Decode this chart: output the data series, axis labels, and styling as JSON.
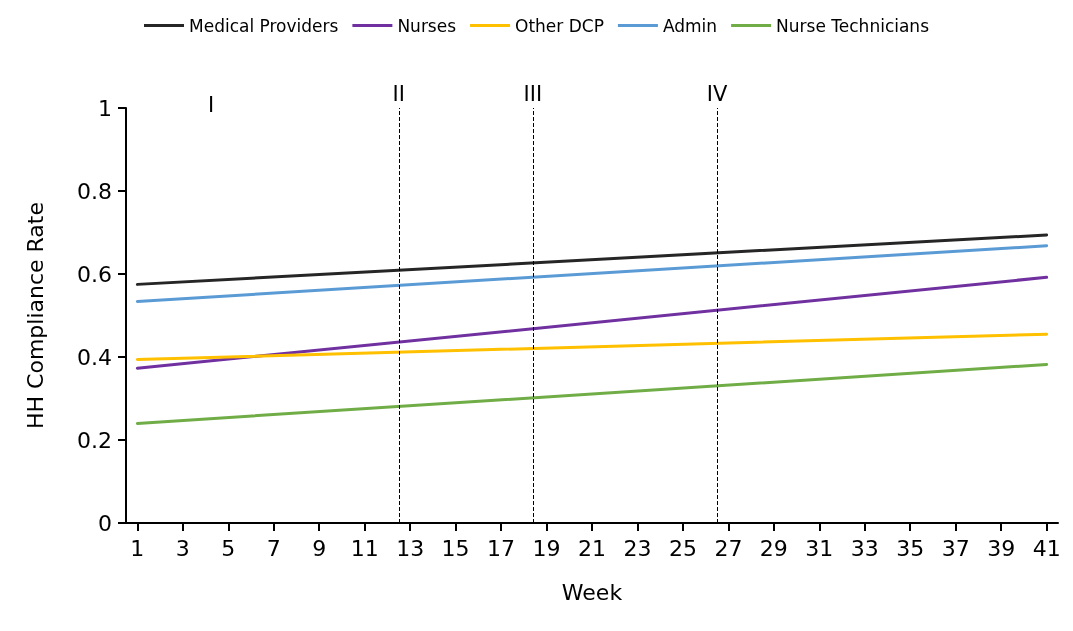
{
  "chart_data": {
    "type": "line",
    "xlabel": "Week",
    "ylabel": "HH Compliance Rate",
    "xlim": [
      0.5,
      41.5
    ],
    "xticks": [
      1,
      3,
      5,
      7,
      9,
      11,
      13,
      15,
      17,
      19,
      21,
      23,
      25,
      27,
      29,
      31,
      33,
      35,
      37,
      39,
      41
    ],
    "ylim": [
      0,
      1
    ],
    "yticks": [
      0,
      0.2,
      0.4,
      0.6,
      0.8,
      1
    ],
    "grid": false,
    "legend": "top",
    "marker": "none",
    "line_style": "solid",
    "x": [
      1,
      41
    ],
    "series": [
      {
        "name": "Medical Providers",
        "color": "#262626",
        "values": [
          0.575,
          0.694
        ]
      },
      {
        "name": "Nurses",
        "color": "#7030a0",
        "values": [
          0.373,
          0.592
        ]
      },
      {
        "name": "Other DCP",
        "color": "#ffc000",
        "values": [
          0.394,
          0.455
        ]
      },
      {
        "name": "Admin",
        "color": "#5b9bd5",
        "values": [
          0.534,
          0.668
        ]
      },
      {
        "name": "Nurse Technicians",
        "color": "#70ad47",
        "values": [
          0.24,
          0.382
        ]
      }
    ],
    "ref_lines": [
      {
        "axis": "x",
        "value": 12.5,
        "label": "II",
        "color": "#000000",
        "line_style": "dashed"
      },
      {
        "axis": "x",
        "value": 18.4,
        "label": "III",
        "color": "#000000",
        "line_style": "dashed"
      },
      {
        "axis": "x",
        "value": 26.5,
        "label": "IV",
        "color": "#000000",
        "line_style": "dashed"
      }
    ],
    "annotations": [
      "I"
    ]
  }
}
